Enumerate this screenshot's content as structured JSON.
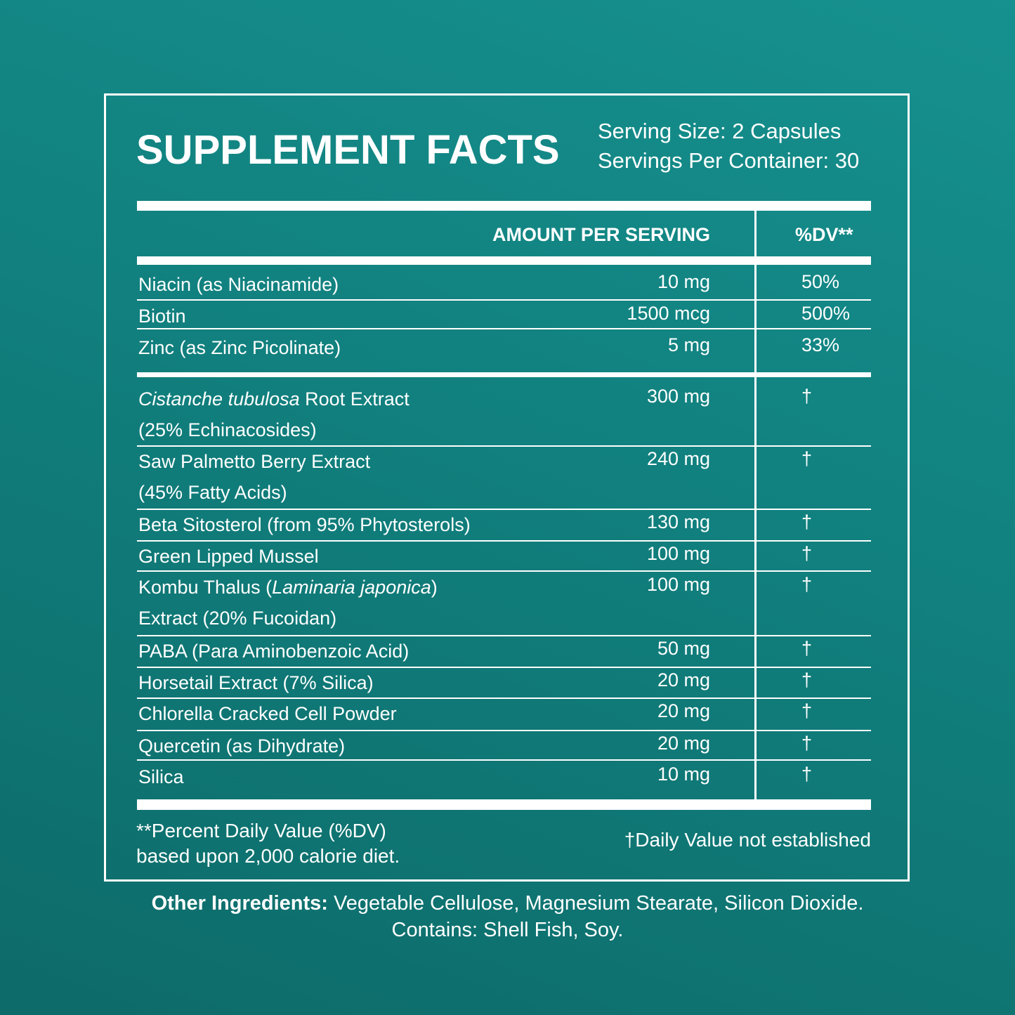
{
  "title": "SUPPLEMENT FACTS",
  "serving_size": "Serving Size: 2 Capsules",
  "servings_per_container": "Servings Per Container: 30",
  "table": {
    "header_amount": "AMOUNT PER SERVING",
    "header_dv": "%DV**",
    "vitamins": [
      {
        "name": [
          [
            {
              "t": "Niacin (as Niacinamide)"
            }
          ]
        ],
        "amount": "10 mg",
        "dv": "50%"
      },
      {
        "name": [
          [
            {
              "t": "Biotin"
            }
          ]
        ],
        "amount": "1500 mcg",
        "dv": "500%"
      },
      {
        "name": [
          [
            {
              "t": "Zinc (as Zinc Picolinate)"
            }
          ]
        ],
        "amount": "5 mg",
        "dv": "33%"
      }
    ],
    "others": [
      {
        "name": [
          [
            {
              "t": "Cistanche tubulosa",
              "i": true
            },
            {
              "t": " Root Extract"
            }
          ],
          [
            {
              "t": "(25% Echinacosides)"
            }
          ]
        ],
        "amount": "300 mg",
        "dv": "†"
      },
      {
        "name": [
          [
            {
              "t": "Saw Palmetto Berry Extract"
            }
          ],
          [
            {
              "t": "(45% Fatty Acids)"
            }
          ]
        ],
        "amount": "240 mg",
        "dv": "†"
      },
      {
        "name": [
          [
            {
              "t": "Beta Sitosterol (from 95% Phytosterols)"
            }
          ]
        ],
        "amount": "130 mg",
        "dv": "†"
      },
      {
        "name": [
          [
            {
              "t": "Green Lipped Mussel"
            }
          ]
        ],
        "amount": "100 mg",
        "dv": "†"
      },
      {
        "name": [
          [
            {
              "t": "Kombu Thalus ("
            },
            {
              "t": "Laminaria japonica",
              "i": true
            },
            {
              "t": ")"
            }
          ],
          [
            {
              "t": "Extract (20% Fucoidan)"
            }
          ]
        ],
        "amount": "100 mg",
        "dv": "†"
      },
      {
        "name": [
          [
            {
              "t": "PABA (Para Aminobenzoic Acid)"
            }
          ]
        ],
        "amount": "50 mg",
        "dv": "†"
      },
      {
        "name": [
          [
            {
              "t": "Horsetail Extract (7% Silica)"
            }
          ]
        ],
        "amount": "20 mg",
        "dv": "†"
      },
      {
        "name": [
          [
            {
              "t": "Chlorella Cracked Cell Powder"
            }
          ]
        ],
        "amount": "20 mg",
        "dv": "†"
      },
      {
        "name": [
          [
            {
              "t": "Quercetin (as Dihydrate)"
            }
          ]
        ],
        "amount": "20 mg",
        "dv": "†"
      },
      {
        "name": [
          [
            {
              "t": "Silica"
            }
          ]
        ],
        "amount": "10 mg",
        "dv": "†"
      }
    ]
  },
  "footnotes": {
    "dv_line1": "**Percent Daily Value (%DV)",
    "dv_line2": "based upon 2,000 calorie diet.",
    "not_established": "†Daily Value not established"
  },
  "other_ingredients": {
    "label": "Other Ingredients:",
    "text": " Vegetable Cellulose, Magnesium Stearate, Silicon Dioxide.",
    "contains": "Contains: Shell Fish, Soy."
  },
  "colors": {
    "background": "#11807e",
    "foreground": "#ffffff"
  }
}
